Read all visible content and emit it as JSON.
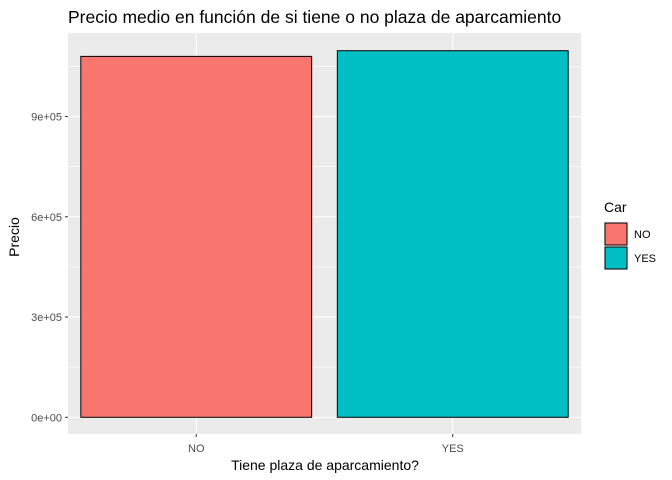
{
  "chart_data": {
    "type": "bar",
    "title": "Precio medio en función de si tiene o no plaza de aparcamiento",
    "xlabel": "Tiene plaza de aparcamiento?",
    "ylabel": "Precio",
    "categories": [
      "NO",
      "YES"
    ],
    "values": [
      1080000,
      1097000
    ],
    "colors": [
      "#F8766D",
      "#00BFC4"
    ],
    "ylim": [
      -50000,
      1150000
    ],
    "yticks": [
      0,
      300000,
      600000,
      900000
    ],
    "ytick_labels": [
      "0e+00",
      "3e+05",
      "6e+05",
      "9e+05"
    ],
    "legend": {
      "title": "Car",
      "entries": [
        "NO",
        "YES"
      ],
      "placement": "right"
    },
    "grid": true,
    "panel_background": "#EBEBEB"
  }
}
